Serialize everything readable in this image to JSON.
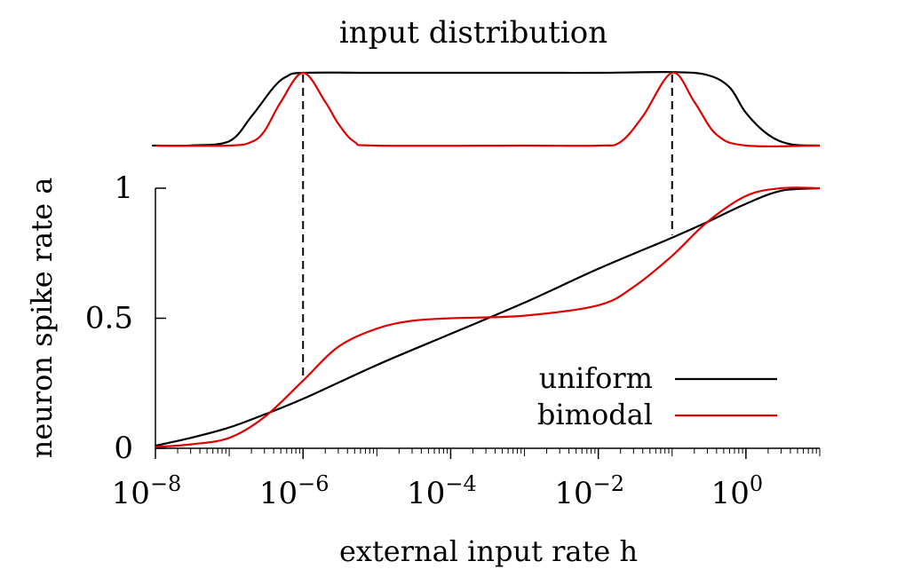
{
  "chart_data": [
    {
      "type": "area",
      "title": "input distribution",
      "xscale": "log",
      "xlim": [
        1e-08,
        10
      ],
      "series": [
        {
          "name": "uniform",
          "color": "#000000",
          "x": [
            1e-09,
            1e-08,
            3e-08,
            1e-07,
            2e-07,
            4e-07,
            6e-07,
            1e-06,
            1e-05,
            0.0001,
            0.001,
            0.01,
            0.1,
            0.3,
            0.6,
            1,
            2,
            4,
            10
          ],
          "values": [
            0,
            0,
            0.002,
            0.06,
            0.4,
            0.8,
            0.95,
            1,
            1,
            1,
            1,
            1,
            1.01,
            0.97,
            0.8,
            0.45,
            0.15,
            0.02,
            0
          ]
        },
        {
          "name": "bimodal",
          "color": "#e00000",
          "x": [
            1e-09,
            1e-07,
            2e-07,
            3e-07,
            5e-07,
            1e-06,
            2e-06,
            3e-06,
            5e-06,
            1e-05,
            0.001,
            0.01,
            0.02,
            0.04,
            0.1,
            0.2,
            0.4,
            1,
            10
          ],
          "values": [
            0,
            0,
            0.05,
            0.2,
            0.6,
            1,
            0.6,
            0.3,
            0.05,
            0,
            0,
            0,
            0.05,
            0.4,
            1,
            0.6,
            0.15,
            0,
            0
          ]
        }
      ]
    },
    {
      "type": "line",
      "xlabel": "external input rate h",
      "ylabel": "neuron spike rate a",
      "xscale": "log",
      "xlim": [
        1e-08,
        10
      ],
      "ylim": [
        0,
        1
      ],
      "xticks": [
        {
          "base": "10",
          "exp": "−8",
          "value": 1e-08
        },
        {
          "base": "10",
          "exp": "−6",
          "value": 1e-06
        },
        {
          "base": "10",
          "exp": "−4",
          "value": 0.0001
        },
        {
          "base": "10",
          "exp": "−2",
          "value": 0.01
        },
        {
          "base": "10",
          "exp": "0",
          "value": 1
        }
      ],
      "yticks": [
        {
          "label": "1",
          "value": 1
        },
        {
          "label": "0.5",
          "value": 0.5
        },
        {
          "label": "0",
          "value": 0
        }
      ],
      "legend_position": "bottom-right",
      "series": [
        {
          "name": "uniform",
          "color": "#000000",
          "x": [
            1e-08,
            3e-08,
            1e-07,
            3e-07,
            1e-06,
            1e-05,
            0.0001,
            0.001,
            0.01,
            0.1,
            0.3,
            1,
            3,
            10
          ],
          "values": [
            0.01,
            0.04,
            0.08,
            0.13,
            0.19,
            0.32,
            0.44,
            0.56,
            0.69,
            0.81,
            0.87,
            0.94,
            0.99,
            1.0
          ]
        },
        {
          "name": "bimodal",
          "color": "#e00000",
          "x": [
            1e-08,
            3e-08,
            1e-07,
            3e-07,
            1e-06,
            3e-06,
            1e-05,
            3e-05,
            0.0001,
            0.001,
            0.01,
            0.03,
            0.1,
            0.3,
            1,
            3,
            10
          ],
          "values": [
            0.005,
            0.015,
            0.04,
            0.12,
            0.26,
            0.39,
            0.46,
            0.49,
            0.5,
            0.51,
            0.55,
            0.62,
            0.74,
            0.87,
            0.97,
            1.0,
            1.0
          ]
        }
      ],
      "markers": [
        {
          "x": 1e-06,
          "y_from": 0.27
        },
        {
          "x": 0.1,
          "y_from": 0.82
        }
      ]
    }
  ]
}
